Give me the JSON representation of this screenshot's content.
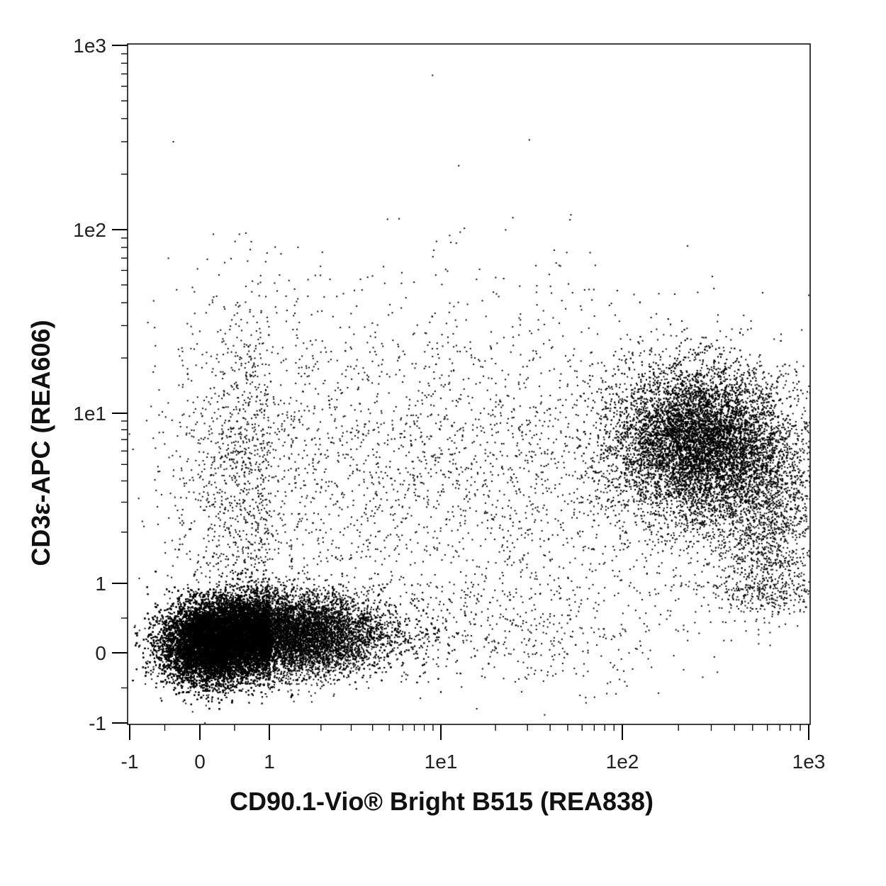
{
  "chart_data": {
    "type": "scatter",
    "subtype": "flow-cytometry-dot-plot",
    "title": "",
    "xlabel": "CD90.1-Vio® Bright B515 (REA838)",
    "ylabel": "CD3ε-APC (REA606)",
    "x_scale": "biexponential",
    "y_scale": "biexponential",
    "xlim": [
      -1,
      1000
    ],
    "ylim": [
      -1,
      1000
    ],
    "x_ticks": [
      {
        "value": -1,
        "label": "-1"
      },
      {
        "value": 0,
        "label": "0"
      },
      {
        "value": 1,
        "label": "1"
      },
      {
        "value": 10,
        "label": "1e1"
      },
      {
        "value": 100,
        "label": "1e2"
      },
      {
        "value": 1000,
        "label": "1e3"
      }
    ],
    "y_ticks": [
      {
        "value": -1,
        "label": "-1"
      },
      {
        "value": 0,
        "label": "0"
      },
      {
        "value": 1,
        "label": "1"
      },
      {
        "value": 10,
        "label": "1e1"
      },
      {
        "value": 100,
        "label": "1e2"
      },
      {
        "value": 1000,
        "label": "1e3"
      }
    ],
    "grid": false,
    "legend": "none",
    "dot_color": "#000000",
    "populations": [
      {
        "center_x": 0.3,
        "center_y": 0.2,
        "relative_density": "very high"
      },
      {
        "center_x": 2.0,
        "center_y": 0.3,
        "relative_density": "high"
      },
      {
        "center_x": 250,
        "center_y": 7,
        "relative_density": "high"
      },
      {
        "center_x": 600,
        "center_y": 2,
        "relative_density": "low"
      },
      {
        "center_x": 0.8,
        "center_y": 5,
        "relative_density": "low"
      },
      {
        "center_x": 20,
        "center_y": 5,
        "relative_density": "sparse"
      }
    ]
  }
}
